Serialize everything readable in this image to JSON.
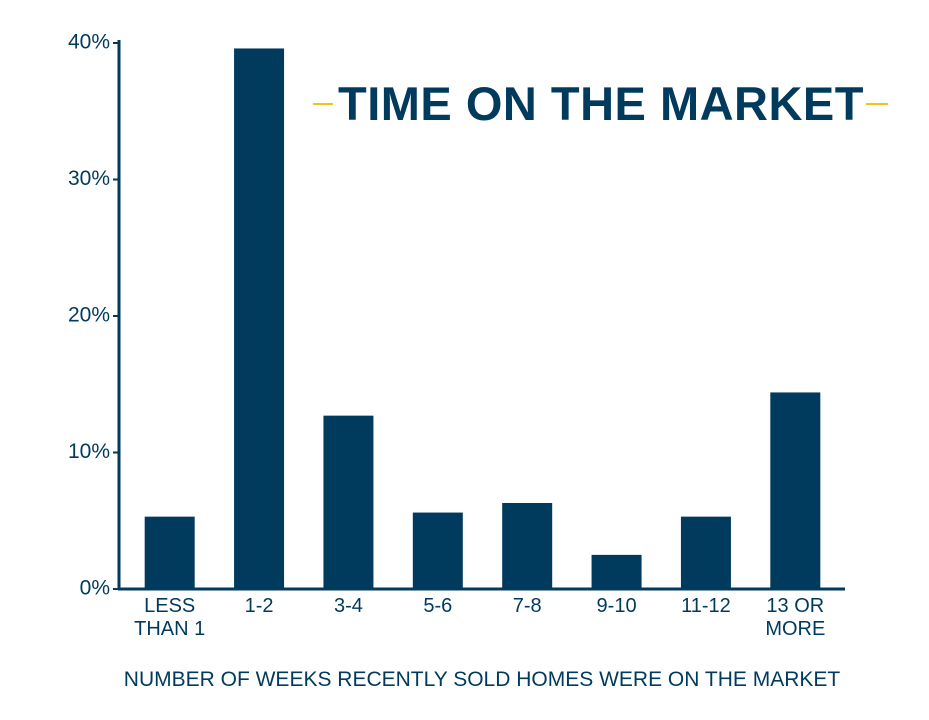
{
  "chart_data": {
    "type": "bar",
    "title": "TIME ON THE MARKET",
    "x_label": "NUMBER OF WEEKS RECENTLY SOLD HOMES WERE ON THE MARKET",
    "categories": [
      "LESS THAN 1",
      "1-2",
      "3-4",
      "5-6",
      "7-8",
      "9-10",
      "11-12",
      "13 OR MORE"
    ],
    "values": [
      5.3,
      39.6,
      12.7,
      5.6,
      6.3,
      2.5,
      5.3,
      14.4
    ],
    "color": "#003a5d",
    "ylim": [
      0,
      40
    ],
    "yticks": [
      {
        "value": 0,
        "label": "0%"
      },
      {
        "value": 10,
        "label": "10%"
      },
      {
        "value": 20,
        "label": "20%"
      },
      {
        "value": 30,
        "label": "30%"
      },
      {
        "value": 40,
        "label": "40%"
      }
    ],
    "grid": false
  }
}
